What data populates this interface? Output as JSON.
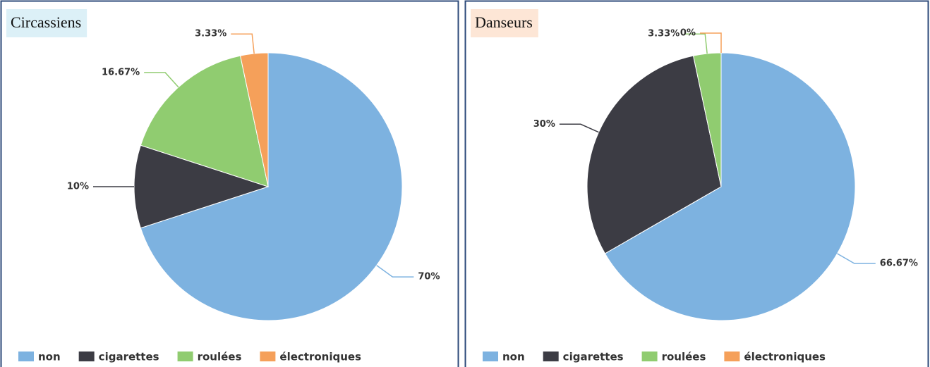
{
  "chart_data": [
    {
      "type": "pie",
      "title": "Circassiens",
      "categories": [
        "non",
        "cigarettes",
        "roulées",
        "électroniques"
      ],
      "values": [
        70,
        10,
        16.67,
        3.33
      ],
      "value_labels": [
        "70%",
        "10%",
        "16.67%",
        "3.33%"
      ],
      "colors": [
        "#7db2e0",
        "#3c3c44",
        "#90cc70",
        "#f5a05a"
      ],
      "title_color": "#dcf0f7",
      "legend": "bottom"
    },
    {
      "type": "pie",
      "title": "Danseurs",
      "categories": [
        "non",
        "cigarettes",
        "roulées",
        "électroniques"
      ],
      "values": [
        66.67,
        30,
        3.33,
        0
      ],
      "value_labels": [
        "66.67%",
        "30%",
        "3.33%",
        "0%"
      ],
      "colors": [
        "#7db2e0",
        "#3c3c44",
        "#90cc70",
        "#f5a05a"
      ],
      "title_color": "#fde6d6",
      "legend": "bottom"
    }
  ]
}
